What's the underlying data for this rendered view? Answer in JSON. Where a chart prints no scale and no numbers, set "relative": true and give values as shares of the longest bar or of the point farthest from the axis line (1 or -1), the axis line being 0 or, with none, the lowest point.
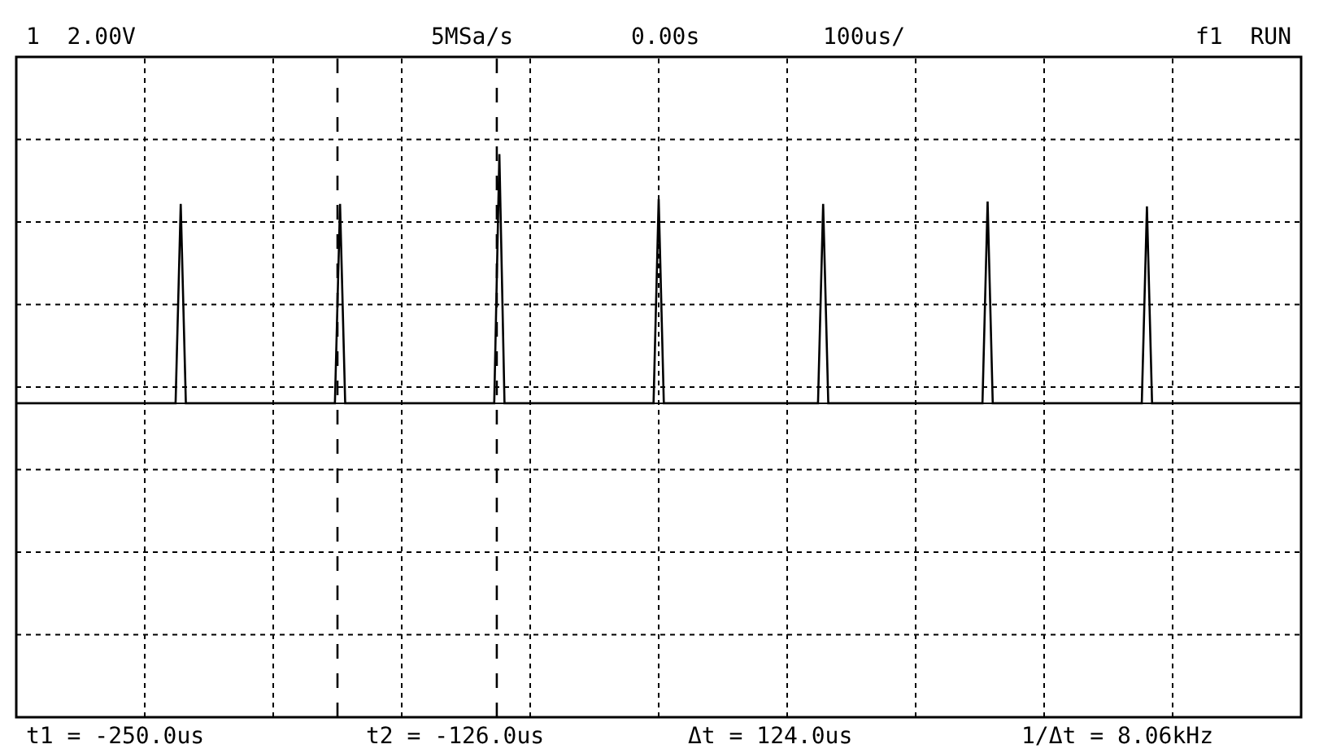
{
  "chart_data": {
    "type": "line",
    "relative": true,
    "categories": [
      null,
      null,
      null,
      null,
      null,
      null,
      null,
      null,
      null,
      null,
      null,
      null,
      null,
      null,
      null,
      null,
      null,
      null,
      null,
      null,
      null,
      null,
      null,
      null,
      null,
      null,
      null,
      null,
      null,
      null,
      null,
      null,
      null,
      null,
      null,
      null,
      null,
      null,
      null,
      null,
      null,
      null,
      null,
      null,
      null,
      null,
      null,
      null,
      null,
      null,
      null,
      null,
      null,
      null,
      null,
      null,
      null,
      null,
      null,
      null,
      null,
      null,
      null,
      null,
      null,
      null,
      null,
      null,
      null,
      null,
      null,
      null,
      null,
      null,
      null,
      null,
      null,
      null,
      null,
      null,
      null,
      null,
      null,
      null,
      null,
      null,
      null,
      null,
      null,
      null,
      null,
      null,
      null,
      null,
      null,
      null,
      null,
      null,
      null,
      null,
      null,
      null,
      null,
      null,
      null,
      null,
      null,
      null,
      null,
      null,
      null,
      null,
      null,
      null,
      null,
      null,
      null,
      null,
      null,
      null,
      null,
      null,
      null,
      null,
      null,
      null,
      null,
      null,
      null,
      null,
      null,
      null,
      null,
      null,
      null,
      null,
      null,
      null,
      null,
      null,
      null,
      null,
      null,
      null,
      null,
      null,
      null,
      null,
      null,
      null,
      null,
      null,
      null,
      null,
      null,
      null,
      null,
      null,
      null,
      null,
      null,
      null,
      null,
      null,
      null,
      null,
      null,
      null,
      null,
      null,
      null,
      null,
      null,
      null,
      null,
      null,
      null,
      null,
      null,
      null,
      null,
      null,
      null,
      null,
      null,
      null,
      null,
      null,
      null,
      null,
      null,
      null,
      null,
      null,
      null,
      null,
      null,
      null,
      null,
      null,
      null,
      null,
      null,
      null,
      null,
      null,
      null,
      null,
      null,
      null,
      null,
      null,
      null,
      null,
      null,
      null,
      null,
      null,
      null,
      null,
      null,
      null,
      null,
      null,
      null,
      null,
      null,
      null,
      null,
      null,
      null,
      null,
      null,
      null,
      null,
      null,
      null,
      null,
      null,
      null,
      null,
      null,
      null,
      null,
      null,
      null,
      null,
      null,
      null,
      null,
      null
    ],
    "series": [
      {
        "color": "#000000",
        "values": [
          0,
          0,
          0,
          0,
          0,
          0,
          0,
          0,
          0,
          0,
          0,
          0,
          0,
          0,
          0,
          0,
          0,
          0,
          0,
          0,
          0,
          0,
          0,
          0,
          0,
          0,
          0,
          0,
          0,
          0,
          0,
          0,
          0.8,
          0,
          0,
          0,
          0,
          0,
          0,
          0,
          0,
          0,
          0,
          0,
          0,
          0,
          0,
          0,
          0,
          0,
          0,
          0,
          0,
          0,
          0,
          0,
          0,
          0,
          0,
          0,
          0,
          0,
          0,
          0.8,
          0,
          0,
          0,
          0,
          0,
          0,
          0,
          0,
          0,
          0,
          0,
          0,
          0,
          0,
          0,
          0,
          0,
          0,
          0,
          0,
          0,
          0,
          0,
          0,
          0,
          0,
          0,
          0,
          0,
          0,
          1,
          0,
          0,
          0,
          0,
          0,
          0,
          0,
          0,
          0,
          0,
          0,
          0,
          0,
          0,
          0,
          0,
          0,
          0,
          0,
          0,
          0,
          0,
          0,
          0,
          0,
          0,
          0,
          0,
          0,
          0,
          0.82,
          0,
          0,
          0,
          0,
          0,
          0,
          0,
          0,
          0,
          0,
          0,
          0,
          0,
          0,
          0,
          0,
          0,
          0,
          0,
          0,
          0,
          0,
          0,
          0,
          0,
          0,
          0,
          0,
          0,
          0,
          0,
          0.8,
          0,
          0,
          0,
          0,
          0,
          0,
          0,
          0,
          0,
          0,
          0,
          0,
          0,
          0,
          0,
          0,
          0,
          0,
          0,
          0,
          0,
          0,
          0,
          0,
          0,
          0,
          0,
          0,
          0,
          0,
          0,
          0.81,
          0,
          0,
          0,
          0,
          0,
          0,
          0,
          0,
          0,
          0,
          0,
          0,
          0,
          0,
          0,
          0,
          0,
          0,
          0,
          0,
          0,
          0,
          0,
          0,
          0,
          0,
          0,
          0,
          0,
          0,
          0.79,
          0,
          0,
          0,
          0,
          0,
          0,
          0,
          0,
          0,
          0,
          0,
          0,
          0,
          0,
          0,
          0,
          0,
          0,
          0,
          0,
          0,
          0,
          0,
          0,
          0,
          0,
          0,
          0,
          0,
          0
        ]
      }
    ],
    "grid": true,
    "marker": "none",
    "line_style": "solid",
    "legend": false,
    "annotations": [
      "1  2.00V",
      "5MSa/s",
      "0.00s",
      "100us/",
      "f1  RUN",
      "t1 = -250.0us",
      "t2 = -126.0us",
      "Δt = 124.0us",
      "1/Δt = 8.06kHz"
    ]
  }
}
